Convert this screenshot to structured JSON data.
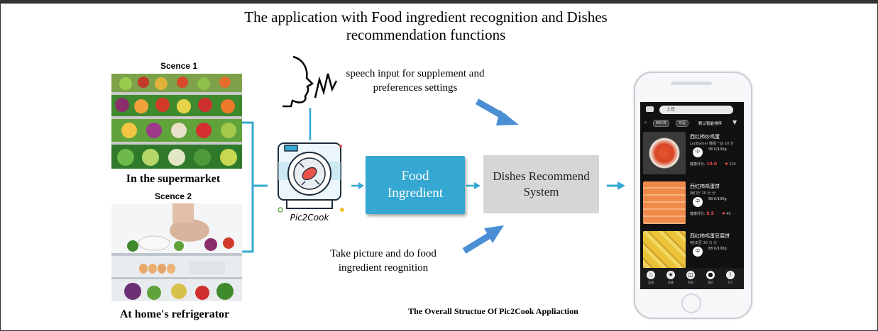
{
  "title": "The application with Food ingredient recognition and Dishes recommendation functions",
  "title_line1": "The application with Food ingredient recognition and Dishes",
  "title_line2": "recommendation functions",
  "scenes": [
    {
      "label": "Scence 1",
      "place": "In the supermarket"
    },
    {
      "label": "Scence 2",
      "place": "At home's refrigerator"
    }
  ],
  "speech_note_line1": "speech input for supplement and",
  "speech_note_line2": "preferences settings",
  "picture_note_line1": "Take picture and do food",
  "picture_note_line2": "ingredient reognition",
  "logo_text": "Pic2Cook",
  "food_box_line1": "Food",
  "food_box_line2": "Ingredient",
  "dish_box_line1": "Dishes Recommend",
  "dish_box_line2": "System",
  "caption": "The Overall Structue Of Pic2Cook Appliaction",
  "colors": {
    "accent": "#34a8d2",
    "arrow": "#4a8fd4",
    "gray_box": "#d6d6d6"
  },
  "phone": {
    "search_text": "土豆",
    "chips": [
      "西红柿",
      "鸡蛋"
    ],
    "sort_label": "默认智能排序",
    "cards": [
      {
        "name": "西红柿炒鸡蛋",
        "author": "LeoBarner  橄榄一站 20 分",
        "score_label": "健康评分:",
        "score": "10.0",
        "likes": "124",
        "badge": "中",
        "calorie": "98 K/100g"
      },
      {
        "name": "西红柿鸡蛋饼",
        "author": "我们厅  20 分 分",
        "score_label": "健康评分:",
        "score": "9.5",
        "likes": "45",
        "badge": "中",
        "calorie": "88 K/100g"
      },
      {
        "name": "西红柿鸡蛋豆腐饼",
        "author": "哈DE豆  30 分 分",
        "score_label": "",
        "score": "",
        "likes": "",
        "badge": "中",
        "calorie": "88 K/100g"
      }
    ],
    "nav": [
      {
        "icon": "chef-hat-icon",
        "label": "菜谱"
      },
      {
        "icon": "star-icon",
        "label": "收藏"
      },
      {
        "icon": "basket-icon",
        "label": "购物"
      },
      {
        "icon": "user-icon",
        "label": "我的"
      },
      {
        "icon": "info-icon",
        "label": "关于"
      }
    ]
  }
}
